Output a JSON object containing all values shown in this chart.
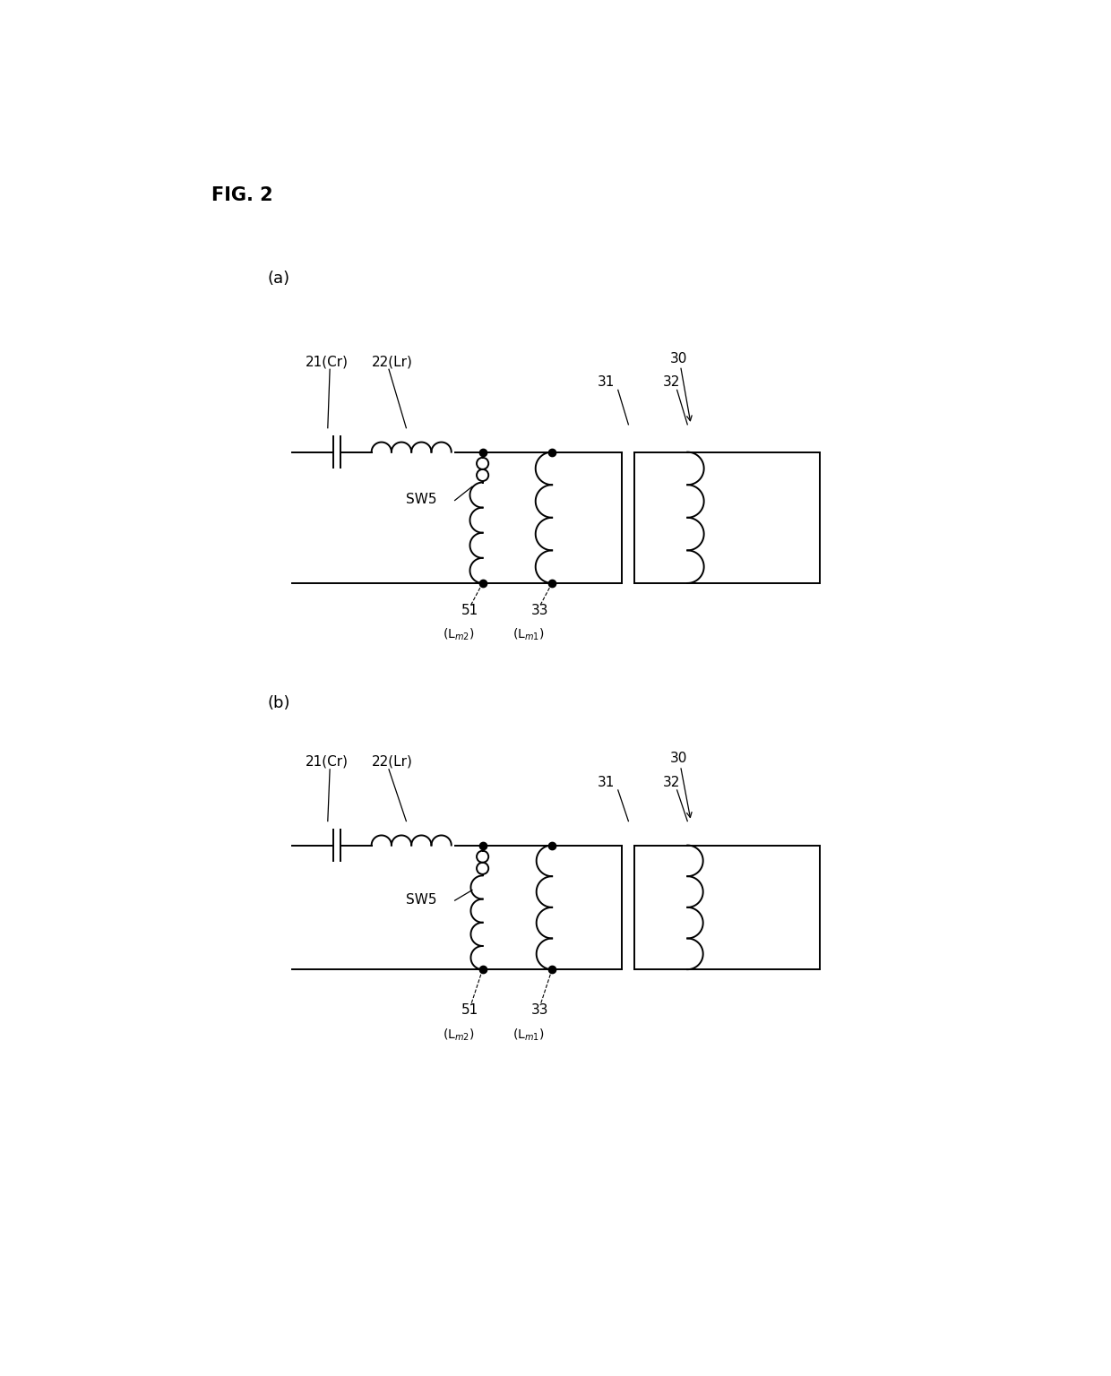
{
  "title": "FIG. 2",
  "bg_color": "#ffffff",
  "label_a": "(a)",
  "label_b": "(b)",
  "fig_width": 12.4,
  "fig_height": 15.36,
  "text_color": "#000000",
  "lw": 1.4,
  "dot_size": 6
}
